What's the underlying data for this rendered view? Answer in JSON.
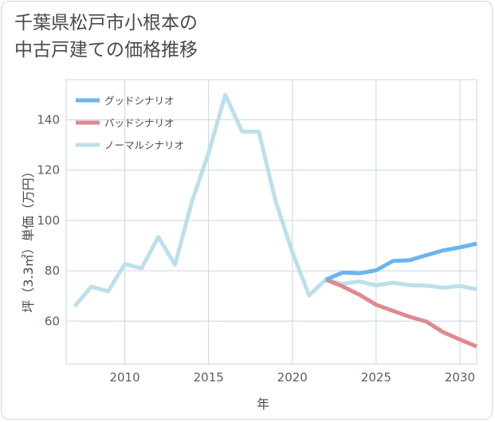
{
  "title": {
    "line1": "千葉県松戸市小根本の",
    "line2": "中古戸建ての価格推移"
  },
  "chart_data": {
    "type": "line",
    "title": "千葉県松戸市小根本の中古戸建ての価格推移",
    "xlabel": "年",
    "ylabel": "坪（3.3㎡）単価（万円）",
    "xlim": [
      2006.5,
      2031
    ],
    "ylim": [
      43,
      156
    ],
    "x_ticks": [
      2010,
      2015,
      2020,
      2025,
      2030
    ],
    "y_ticks": [
      60,
      80,
      100,
      120,
      140
    ],
    "grid": true,
    "legend_position": "top-left",
    "series": [
      {
        "name": "グッドシナリオ",
        "color": "#6cb4ee",
        "x": [
          2022,
          2023,
          2024,
          2025,
          2026,
          2027,
          2028,
          2029,
          2030,
          2031
        ],
        "values": [
          76.5,
          79.3,
          79.0,
          80.2,
          83.9,
          84.2,
          86.2,
          88.1,
          89.3,
          90.8
        ]
      },
      {
        "name": "バッドシナリオ",
        "color": "#e0898f",
        "x": [
          2022,
          2023,
          2024,
          2025,
          2026,
          2027,
          2028,
          2029,
          2030,
          2031
        ],
        "values": [
          76.5,
          73.8,
          70.5,
          66.5,
          64.1,
          61.7,
          59.8,
          55.6,
          52.7,
          49.9
        ]
      },
      {
        "name": "ノーマルシナリオ",
        "color": "#bcdfec",
        "x": [
          2007,
          2008,
          2009,
          2010,
          2011,
          2012,
          2013,
          2014,
          2015,
          2016,
          2017,
          2018,
          2019,
          2020,
          2021,
          2022,
          2023,
          2024,
          2025,
          2026,
          2027,
          2028,
          2029,
          2030,
          2031
        ],
        "values": [
          65.8,
          73.7,
          71.8,
          82.7,
          81.0,
          93.5,
          82.4,
          107.5,
          126.9,
          150.0,
          135.4,
          135.3,
          107.6,
          87.4,
          70.2,
          76.5,
          74.8,
          75.8,
          74.2,
          75.3,
          74.3,
          74.1,
          73.3,
          74.0,
          72.6
        ]
      }
    ]
  }
}
